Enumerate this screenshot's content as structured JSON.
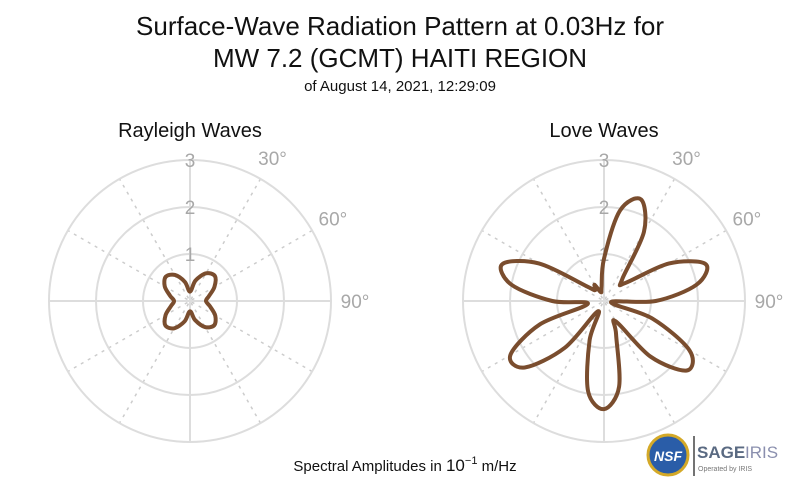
{
  "header": {
    "title_line1": "Surface-Wave Radiation Pattern at 0.03Hz for",
    "title_line2": "MW 7.2 (GCMT) HAITI REGION",
    "subtitle": "of August 14, 2021, 12:29:09"
  },
  "footer": {
    "prefix": "Spectral Amplitudes in ",
    "base": "10",
    "exponent": "−1",
    "unit": " m/Hz"
  },
  "logos": {
    "nsf": "NSF",
    "sage": "SAGE",
    "iris": "IRIS",
    "operated": "Operated by IRIS"
  },
  "colors": {
    "pattern": "#7a4d2e",
    "grid": "#dddddd",
    "label": "#a8a8a8"
  },
  "chart_data": [
    {
      "type": "polar-line",
      "title": "Rayleigh Waves",
      "r_ticks": [
        1,
        2,
        3
      ],
      "r_tick_labels": [
        "1",
        "2",
        "3"
      ],
      "angle_ticks_deg": [
        30,
        60,
        90
      ],
      "angle_tick_labels": [
        "30°",
        "60°",
        "90°"
      ],
      "rlim": [
        0,
        3
      ],
      "grid": true,
      "series": [
        {
          "azimuth_deg": [
            0,
            15,
            30,
            45,
            60,
            75,
            90,
            105,
            120,
            135,
            150,
            165,
            180,
            195,
            210,
            225,
            240,
            255,
            270,
            285,
            300,
            315,
            330,
            345,
            360
          ],
          "amplitude": [
            0.2,
            0.45,
            0.68,
            0.75,
            0.6,
            0.42,
            0.34,
            0.44,
            0.62,
            0.73,
            0.64,
            0.42,
            0.22,
            0.45,
            0.67,
            0.74,
            0.6,
            0.42,
            0.34,
            0.44,
            0.62,
            0.73,
            0.64,
            0.42,
            0.2
          ]
        }
      ]
    },
    {
      "type": "polar-line",
      "title": "Love Waves",
      "r_ticks": [
        1,
        2,
        3
      ],
      "r_tick_labels": [
        "1",
        "2",
        "3"
      ],
      "angle_ticks_deg": [
        30,
        60,
        90
      ],
      "angle_tick_labels": [
        "30°",
        "60°",
        "90°"
      ],
      "rlim": [
        0,
        3
      ],
      "grid": true,
      "series": [
        {
          "azimuth_deg": [
            0,
            10,
            20,
            30,
            40,
            50,
            60,
            70,
            80,
            90,
            100,
            110,
            120,
            130,
            140,
            150,
            160,
            170,
            180,
            190,
            200,
            210,
            220,
            230,
            240,
            250,
            260,
            270,
            280,
            290,
            300,
            310,
            320,
            330,
            340,
            350,
            360
          ],
          "amplitude": [
            0.9,
            1.95,
            2.3,
            1.7,
            0.6,
            0.6,
            1.6,
            2.3,
            2.0,
            1.1,
            0.15,
            1.1,
            2.1,
            2.3,
            1.55,
            0.5,
            0.75,
            1.85,
            2.3,
            1.95,
            0.9,
            0.25,
            1.3,
            2.2,
            2.3,
            1.45,
            0.35,
            1.1,
            2.0,
            2.3,
            1.6,
            0.5,
            0.3,
            0.4,
            0.2,
            0.3,
            0.9
          ]
        }
      ]
    }
  ]
}
